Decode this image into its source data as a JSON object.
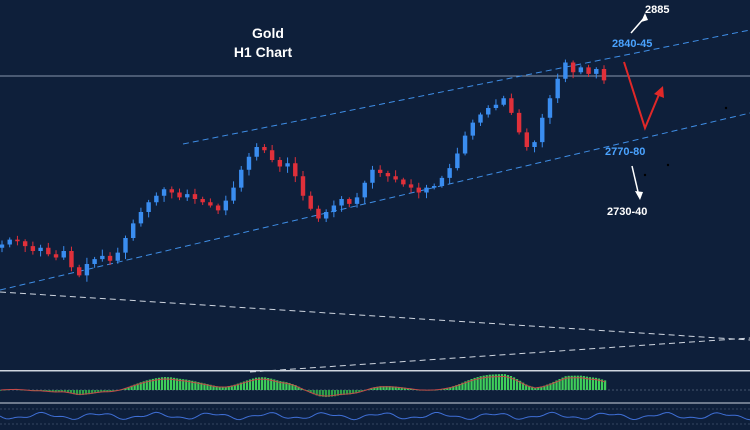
{
  "chart_data": {
    "type": "candlestick",
    "title_line1": "Gold",
    "title_line2": "H1  Chart",
    "levels": {
      "top_target": "2885",
      "resistance": "2840-45",
      "support": "2770-80",
      "lower_target": "2730-40"
    },
    "colors": {
      "background": "#0e1f3a",
      "bull_candle": "#3a8df0",
      "bear_candle": "#e0303a",
      "channel_line": "#3f8ee6",
      "resistance_label": "#4aa3ff",
      "scenario_arrow": "#e02828",
      "white_arrow": "#ffffff",
      "histogram_positive": "#3fcf5a",
      "histogram_negative": "#2fa048"
    },
    "price_closes": [
      2728,
      2731,
      2730,
      2727,
      2724,
      2726,
      2722,
      2720,
      2724,
      2714,
      2709,
      2716,
      2719,
      2721,
      2718,
      2723,
      2732,
      2741,
      2748,
      2754,
      2758,
      2762,
      2760,
      2757,
      2759,
      2756,
      2754,
      2752,
      2749,
      2755,
      2763,
      2774,
      2782,
      2788,
      2786,
      2780,
      2776,
      2778,
      2770,
      2758,
      2750,
      2744,
      2748,
      2752,
      2756,
      2753,
      2757,
      2766,
      2774,
      2772,
      2770,
      2768,
      2765,
      2763,
      2760,
      2763,
      2764,
      2769,
      2775,
      2784,
      2795,
      2803,
      2808,
      2812,
      2814,
      2818,
      2809,
      2797,
      2788,
      2791,
      2806,
      2818,
      2830,
      2840,
      2834,
      2837,
      2833,
      2836,
      2829
    ]
  }
}
